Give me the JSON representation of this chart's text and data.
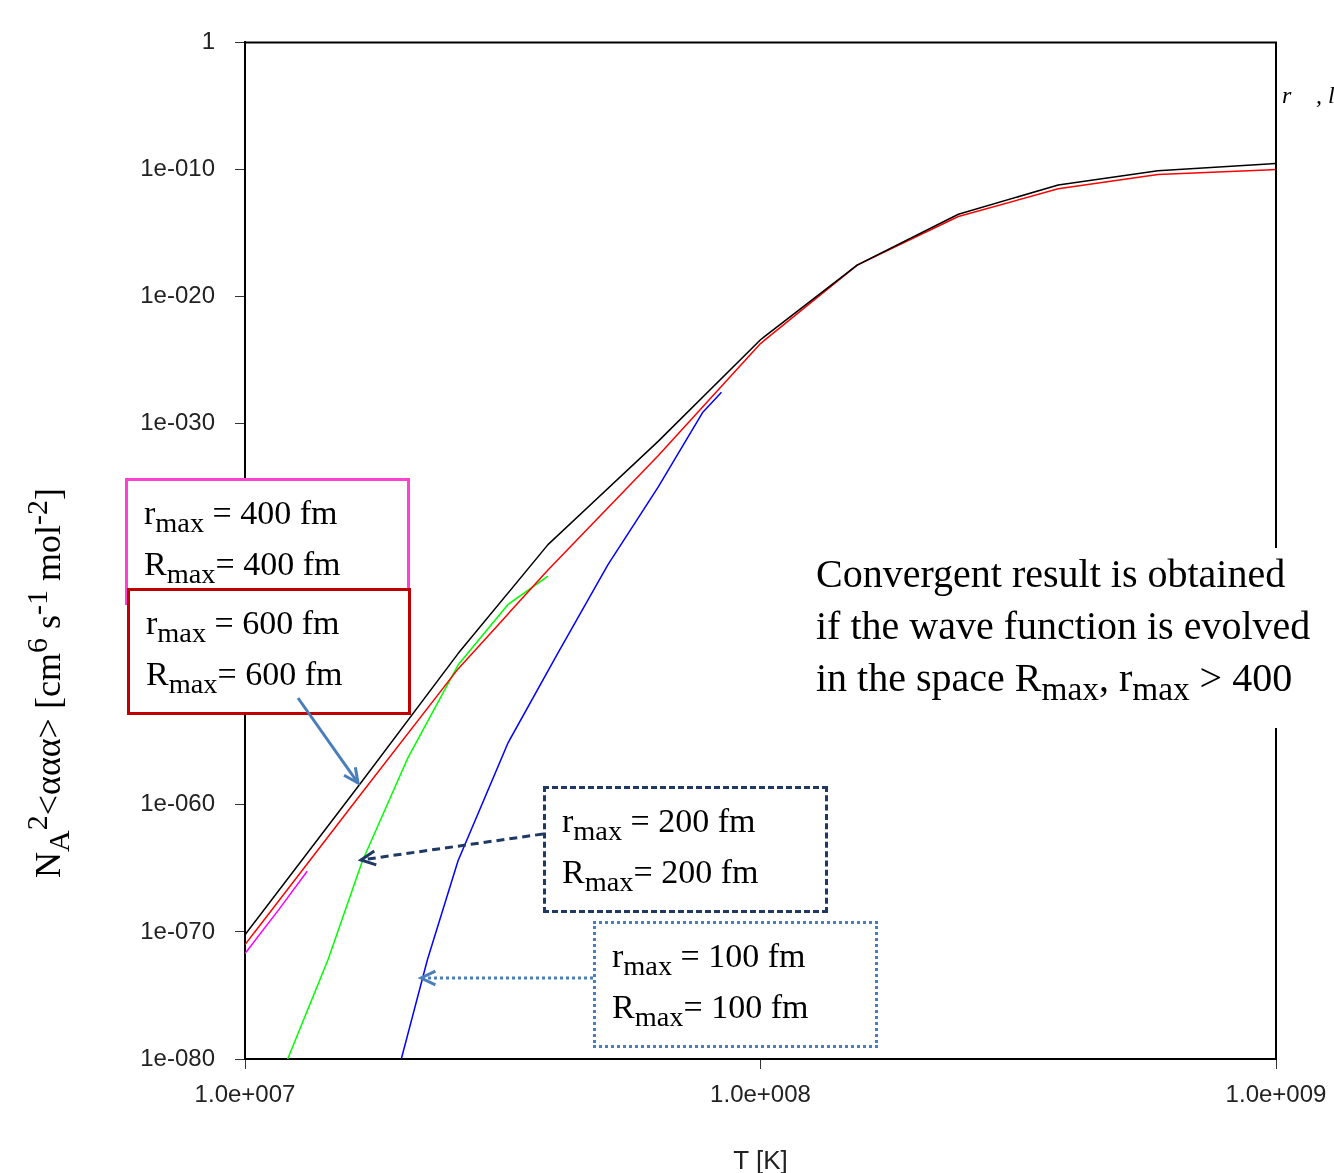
{
  "chart_data": {
    "type": "line",
    "xlabel": "T [K]",
    "ylabel": "N$_{A}$$^{2}$<ααα> [cm$^{6}$ s$^{-1}$ mol$^{-2}$]",
    "log": "xy",
    "legend": false,
    "grid": false,
    "marker": "none",
    "line_style": "solid",
    "xlim": [
      10000000.0,
      1000000000.0
    ],
    "xticks": [
      {
        "value": 10000000.0,
        "label": "1.0e+007"
      },
      {
        "value": 100000000.0,
        "label": "1.0e+008"
      },
      {
        "value": 1000000000.0,
        "label": "1.0e+009"
      }
    ],
    "ylim": [
      1e-80,
      1
    ],
    "yticks": [
      {
        "value": 1e-80,
        "label": "1e-080"
      },
      {
        "value": 1e-70,
        "label": "1e-070"
      },
      {
        "value": 1e-60,
        "label": "1e-060"
      },
      {
        "value": 1e-50,
        "label": null
      },
      {
        "value": 1e-40,
        "label": null
      },
      {
        "value": 1e-30,
        "label": "1e-030"
      },
      {
        "value": 1e-20,
        "label": "1e-020"
      },
      {
        "value": 1e-10,
        "label": "1e-010"
      },
      {
        "value": 1,
        "label": "1"
      }
    ],
    "series": [
      {
        "color": "#000000",
        "x": [
          10000000.0,
          16600000.0,
          25900000.0,
          38700000.0,
          63300000.0,
          100000000.0,
          154000000.0,
          242000000.0,
          378000000.0,
          590000000.0,
          1000000000.0
        ],
        "values": [
          6e-71,
          3e-59,
          8e-49,
          3e-40,
          4e-32,
          4e-24,
          3e-18,
          3e-14,
          6e-12,
          8e-11,
          3e-10
        ]
      },
      {
        "color": "#ff0000",
        "x": [
          10000000.0,
          16600000.0,
          25900000.0,
          38700000.0,
          63300000.0,
          100000000.0,
          154000000.0,
          242000000.0,
          378000000.0,
          590000000.0,
          1000000000.0
        ],
        "values": [
          1e-71,
          4e-60,
          5e-50,
          3e-42,
          3e-33,
          2e-24,
          3e-18,
          2e-14,
          3e-12,
          4e-11,
          1e-10
        ]
      },
      {
        "color": "#ff00ff",
        "x": [
          10000000.0,
          11600000.0,
          13200000.0
        ],
        "values": [
          2e-72,
          5e-69,
          6e-66
        ]
      },
      {
        "color": "#00ff00",
        "x": [
          12100000.0,
          14500000.0,
          16900000.0,
          20700000.0,
          25900000.0,
          32400000.0,
          38700000.0
        ],
        "values": [
          1e-80,
          7e-73,
          4e-65,
          5e-57,
          1e-49,
          6e-45,
          1e-42
        ]
      },
      {
        "color": "#0000ff",
        "x": [
          20100000.0,
          22600000.0,
          25900000.0,
          32400000.0,
          40400000.0,
          50600000.0,
          63300000.0,
          77300000.0,
          84000000.0
        ],
        "values": [
          1e-80,
          7e-73,
          4e-65,
          8e-56,
          8e-49,
          8e-42,
          1e-35,
          8e-30,
          3e-28
        ]
      }
    ],
    "annotations": [
      "r$_{max}$ = 400 fm\nR$_{max}$= 400 fm",
      "r$_{max}$ = 600 fm\nR$_{max}$= 600 fm",
      "r$_{max}$ = 200 fm\nR$_{max}$= 200 fm",
      "r$_{max}$ = 100 fm\nR$_{max}$= 100 fm",
      "Convergent result is obtained\nif the wave function is evolved\nin the space R$_{max}$, r$_{max}$ > 400",
      "r⃗ , l"
    ]
  }
}
